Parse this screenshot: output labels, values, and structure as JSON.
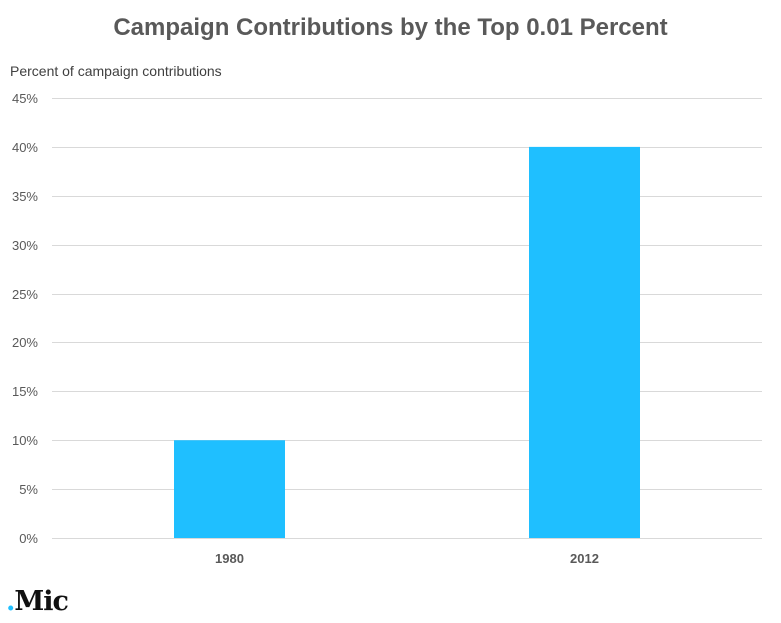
{
  "chart_data": {
    "type": "bar",
    "title": "Campaign Contributions by the Top 0.01 Percent",
    "ylabel": "Percent of campaign contributions",
    "xlabel": "",
    "categories": [
      "1980",
      "2012"
    ],
    "values": [
      10,
      40
    ],
    "ylim": [
      0,
      45
    ],
    "yticks": [
      0,
      5,
      10,
      15,
      20,
      25,
      30,
      35,
      40,
      45
    ],
    "ytick_labels": [
      "0%",
      "5%",
      "10%",
      "15%",
      "20%",
      "25%",
      "30%",
      "35%",
      "40%",
      "45%"
    ],
    "grid": true,
    "legend": "none",
    "bar_color": "#1fbfff",
    "grid_color": "#d9d9d9"
  },
  "branding": {
    "logo_dot": ".",
    "logo_text": "Mic"
  }
}
